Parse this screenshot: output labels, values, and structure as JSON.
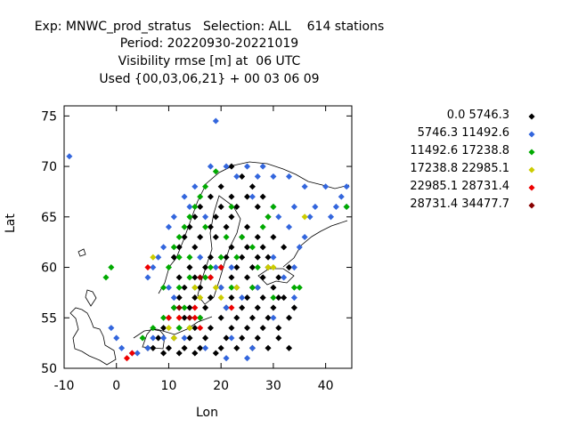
{
  "title": {
    "line1": "Exp: MNWC_prod_stratus   Selection: ALL    614 stations",
    "line2": "Period: 20220930-20221019",
    "line3": "Visibility rmse [m] at  06 UTC",
    "line4": "Used {00,03,06,21} + 00 03 06 09"
  },
  "chart_data": {
    "type": "scatter",
    "xlabel": "Lon",
    "ylabel": "Lat",
    "xlim": [
      -10,
      45
    ],
    "ylim": [
      50,
      76
    ],
    "xticks": [
      -10,
      0,
      10,
      20,
      30,
      40
    ],
    "yticks": [
      50,
      55,
      60,
      65,
      70,
      75
    ],
    "legend_placement": "right",
    "series": [
      {
        "name": "0.0 5746.3",
        "color": "#000000",
        "points": [
          [
            22,
            70
          ],
          [
            24,
            69
          ],
          [
            20,
            68
          ],
          [
            26,
            68
          ],
          [
            18,
            67
          ],
          [
            22,
            67
          ],
          [
            25,
            67
          ],
          [
            28,
            67
          ],
          [
            16,
            66
          ],
          [
            20,
            66
          ],
          [
            23,
            66
          ],
          [
            27,
            66
          ],
          [
            29,
            65
          ],
          [
            15,
            65
          ],
          [
            19,
            65
          ],
          [
            22,
            65
          ],
          [
            25,
            64
          ],
          [
            14,
            64
          ],
          [
            18,
            64
          ],
          [
            21,
            64
          ],
          [
            24,
            63
          ],
          [
            27,
            63
          ],
          [
            13,
            63
          ],
          [
            16,
            63
          ],
          [
            19,
            63
          ],
          [
            22,
            62
          ],
          [
            25,
            62
          ],
          [
            28,
            62
          ],
          [
            12,
            62
          ],
          [
            15,
            62
          ],
          [
            18,
            61
          ],
          [
            21,
            61
          ],
          [
            24,
            61
          ],
          [
            27,
            61
          ],
          [
            11,
            61
          ],
          [
            14,
            60
          ],
          [
            17,
            60
          ],
          [
            20,
            60
          ],
          [
            23,
            60
          ],
          [
            26,
            60
          ],
          [
            29,
            60
          ],
          [
            12,
            59
          ],
          [
            15,
            59
          ],
          [
            18,
            59
          ],
          [
            22,
            59
          ],
          [
            25,
            59
          ],
          [
            28,
            59
          ],
          [
            31,
            59
          ],
          [
            13,
            58
          ],
          [
            16,
            58
          ],
          [
            20,
            58
          ],
          [
            23,
            58
          ],
          [
            26,
            58
          ],
          [
            30,
            58
          ],
          [
            12,
            57
          ],
          [
            15,
            57
          ],
          [
            18,
            57
          ],
          [
            22,
            57
          ],
          [
            25,
            57
          ],
          [
            28,
            57
          ],
          [
            32,
            57
          ],
          [
            11,
            56
          ],
          [
            14,
            56
          ],
          [
            17,
            56
          ],
          [
            21,
            56
          ],
          [
            24,
            56
          ],
          [
            27,
            56
          ],
          [
            30,
            56
          ],
          [
            34,
            56
          ],
          [
            10,
            55
          ],
          [
            13,
            55
          ],
          [
            16,
            55
          ],
          [
            20,
            55
          ],
          [
            23,
            55
          ],
          [
            26,
            55
          ],
          [
            29,
            55
          ],
          [
            33,
            55
          ],
          [
            9,
            54
          ],
          [
            12,
            54
          ],
          [
            15,
            54
          ],
          [
            18,
            54
          ],
          [
            22,
            54
          ],
          [
            25,
            54
          ],
          [
            28,
            54
          ],
          [
            31,
            54
          ],
          [
            8,
            53
          ],
          [
            11,
            53
          ],
          [
            14,
            53
          ],
          [
            17,
            53
          ],
          [
            21,
            53
          ],
          [
            24,
            53
          ],
          [
            27,
            53
          ],
          [
            7,
            52
          ],
          [
            10,
            52
          ],
          [
            13,
            52
          ],
          [
            16,
            52
          ],
          [
            20,
            52
          ],
          [
            23,
            52
          ],
          [
            6,
            52
          ],
          [
            9,
            51.5
          ],
          [
            12,
            51.5
          ],
          [
            15,
            51.5
          ],
          [
            19,
            51.5
          ],
          [
            33,
            60
          ],
          [
            32,
            62
          ],
          [
            30,
            63
          ],
          [
            29,
            61
          ],
          [
            31,
            57
          ],
          [
            27,
            58
          ],
          [
            26,
            52
          ],
          [
            29,
            52
          ],
          [
            31,
            53
          ],
          [
            33,
            52
          ]
        ]
      },
      {
        "name": "5746.3 11492.6",
        "color": "#3366dd",
        "points": [
          [
            19,
            74.5
          ],
          [
            -9,
            71
          ],
          [
            18,
            70
          ],
          [
            21,
            70
          ],
          [
            25,
            70
          ],
          [
            28,
            70
          ],
          [
            30,
            69
          ],
          [
            33,
            69
          ],
          [
            36,
            68
          ],
          [
            40,
            68
          ],
          [
            44,
            68
          ],
          [
            15,
            68
          ],
          [
            13,
            67
          ],
          [
            26,
            67
          ],
          [
            30,
            66
          ],
          [
            34,
            66
          ],
          [
            38,
            66
          ],
          [
            42,
            66
          ],
          [
            11,
            65
          ],
          [
            31,
            65
          ],
          [
            37,
            65
          ],
          [
            41,
            65
          ],
          [
            10,
            64
          ],
          [
            33,
            64
          ],
          [
            36,
            63
          ],
          [
            9,
            62
          ],
          [
            35,
            62
          ],
          [
            8,
            61
          ],
          [
            30,
            61
          ],
          [
            7,
            60
          ],
          [
            34,
            60
          ],
          [
            6,
            59
          ],
          [
            32,
            59
          ],
          [
            27,
            58
          ],
          [
            10,
            58
          ],
          [
            24,
            57
          ],
          [
            11,
            57
          ],
          [
            34,
            57
          ],
          [
            21,
            56
          ],
          [
            30,
            55
          ],
          [
            22,
            53
          ],
          [
            26,
            52
          ],
          [
            -1,
            54
          ],
          [
            0,
            53
          ],
          [
            1,
            52
          ],
          [
            3,
            51.5
          ],
          [
            4,
            51.5
          ],
          [
            6,
            52
          ],
          [
            7,
            53
          ],
          [
            9,
            53
          ],
          [
            13,
            53
          ],
          [
            17,
            52
          ],
          [
            21,
            51
          ],
          [
            25,
            51
          ],
          [
            44,
            66
          ],
          [
            43,
            67
          ],
          [
            20,
            58
          ],
          [
            19,
            60
          ],
          [
            22,
            60
          ],
          [
            16,
            61
          ],
          [
            17,
            65
          ],
          [
            23,
            69
          ],
          [
            27,
            69
          ],
          [
            14,
            66
          ]
        ]
      },
      {
        "name": "11492.6 17238.8",
        "color": "#00aa00",
        "points": [
          [
            19,
            69.5
          ],
          [
            17,
            68
          ],
          [
            16,
            67
          ],
          [
            15,
            66
          ],
          [
            14,
            65
          ],
          [
            13,
            64
          ],
          [
            12,
            63
          ],
          [
            11,
            62
          ],
          [
            17,
            64
          ],
          [
            22,
            66
          ],
          [
            21,
            63
          ],
          [
            24,
            63
          ],
          [
            -2,
            59
          ],
          [
            -1,
            60
          ],
          [
            10,
            60
          ],
          [
            12,
            61
          ],
          [
            14,
            61
          ],
          [
            18,
            60
          ],
          [
            20,
            61
          ],
          [
            23,
            61
          ],
          [
            27,
            60
          ],
          [
            26,
            62
          ],
          [
            28,
            64
          ],
          [
            9,
            58
          ],
          [
            12,
            58
          ],
          [
            15,
            58
          ],
          [
            17,
            59
          ],
          [
            14,
            59
          ],
          [
            22,
            58
          ],
          [
            26,
            58
          ],
          [
            30,
            57
          ],
          [
            35,
            58
          ],
          [
            11,
            56
          ],
          [
            13,
            56
          ],
          [
            16,
            55
          ],
          [
            9,
            55
          ],
          [
            12,
            54
          ],
          [
            14,
            54
          ],
          [
            5,
            53
          ],
          [
            7,
            54
          ],
          [
            34,
            58
          ],
          [
            44,
            66
          ],
          [
            30,
            66
          ],
          [
            29,
            65
          ]
        ]
      },
      {
        "name": "17238.8 22985.1",
        "color": "#cccc00",
        "points": [
          [
            7,
            61
          ],
          [
            36,
            65
          ],
          [
            30,
            60
          ],
          [
            15,
            58
          ],
          [
            23,
            58
          ],
          [
            16,
            57
          ],
          [
            20,
            57
          ],
          [
            12,
            55
          ],
          [
            14,
            54
          ],
          [
            10,
            54
          ],
          [
            11,
            53
          ],
          [
            29,
            60
          ],
          [
            19,
            58
          ]
        ]
      },
      {
        "name": "22985.1 28731.4",
        "color": "#ee0000",
        "points": [
          [
            6,
            60
          ],
          [
            18,
            59
          ],
          [
            20,
            60
          ],
          [
            22,
            56
          ],
          [
            15,
            55
          ],
          [
            16,
            54
          ],
          [
            10,
            55
          ],
          [
            2,
            51
          ],
          [
            3,
            51.5
          ],
          [
            12,
            55
          ],
          [
            15,
            56
          ]
        ]
      },
      {
        "name": "28731.4 34477.7",
        "color": "#880000",
        "points": [
          [
            16,
            59
          ],
          [
            12,
            56
          ],
          [
            14,
            55
          ]
        ]
      }
    ]
  }
}
